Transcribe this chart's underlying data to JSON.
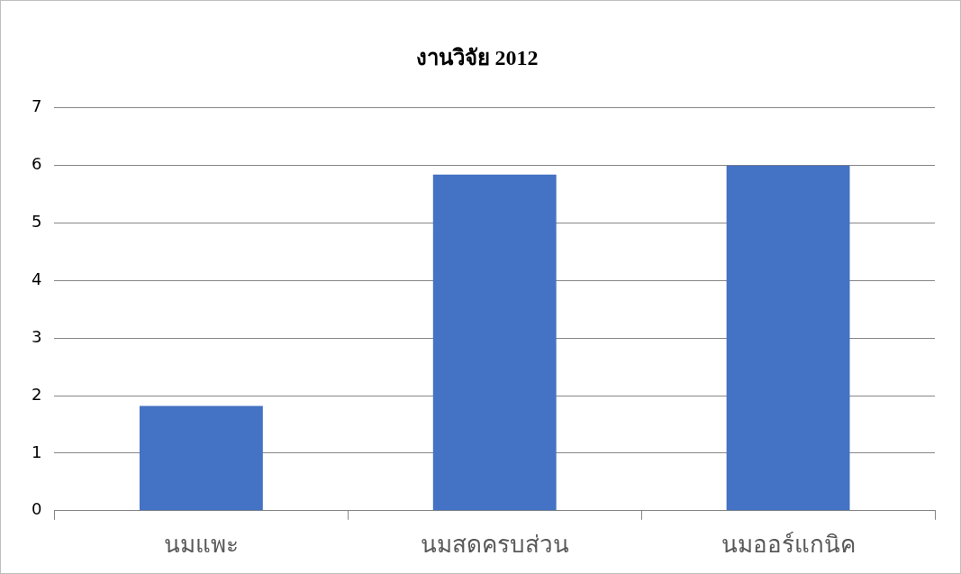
{
  "chart_data": {
    "type": "bar",
    "title": "งานวิจัย 2012",
    "categories": [
      "นมแพะ",
      "นมสดครบส่วน",
      "นมออร์แกนิค"
    ],
    "values": [
      1.82,
      5.84,
      6.0
    ],
    "color": "#4472c4",
    "ylim": [
      0,
      7
    ],
    "yticks": [
      0,
      1,
      2,
      3,
      4,
      5,
      6,
      7
    ],
    "grid": "y"
  }
}
